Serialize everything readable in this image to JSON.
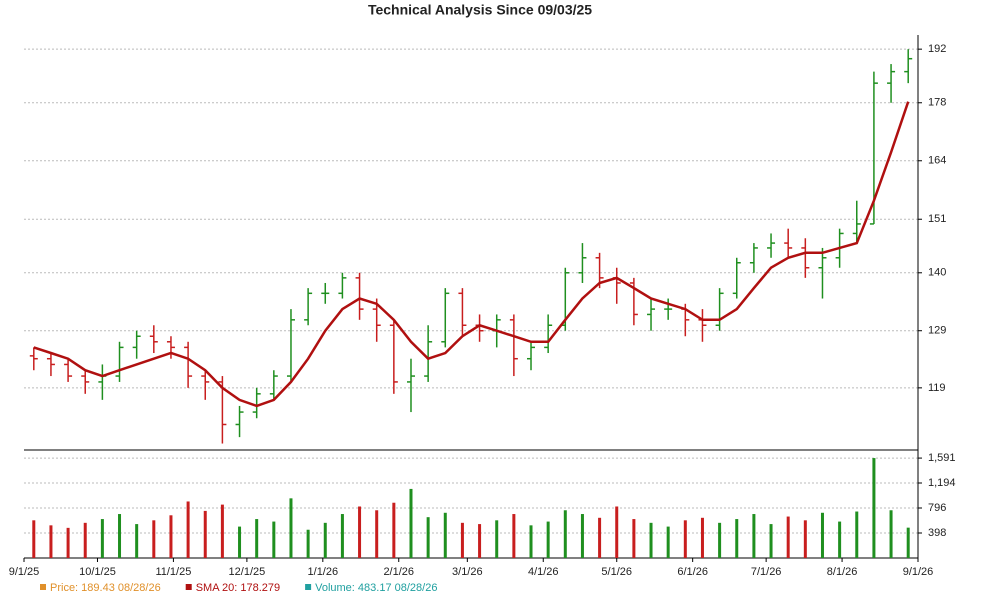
{
  "chart_data": [
    {
      "type": "ohlc",
      "title": "Technical Analysis Since 09/03/25",
      "x": [
        "2025-09-05",
        "2025-09-12",
        "2025-09-19",
        "2025-09-26",
        "2025-10-03",
        "2025-10-10",
        "2025-10-17",
        "2025-10-24",
        "2025-10-31",
        "2025-11-07",
        "2025-11-14",
        "2025-11-21",
        "2025-11-28",
        "2025-12-05",
        "2025-12-12",
        "2025-12-19",
        "2025-12-26",
        "2026-01-02",
        "2026-01-09",
        "2026-01-16",
        "2026-01-23",
        "2026-01-30",
        "2026-02-06",
        "2026-02-13",
        "2026-02-20",
        "2026-02-27",
        "2026-03-06",
        "2026-03-13",
        "2026-03-20",
        "2026-03-27",
        "2026-04-03",
        "2026-04-10",
        "2026-04-17",
        "2026-04-24",
        "2026-05-01",
        "2026-05-08",
        "2026-05-15",
        "2026-05-22",
        "2026-05-29",
        "2026-06-05",
        "2026-06-12",
        "2026-06-19",
        "2026-06-26",
        "2026-07-03",
        "2026-07-10",
        "2026-07-17",
        "2026-07-24",
        "2026-07-31",
        "2026-08-07",
        "2026-08-14",
        "2026-08-21",
        "2026-08-28"
      ],
      "open": [
        124.5,
        124,
        123,
        121,
        120,
        121,
        126,
        128,
        127,
        126,
        121,
        120,
        113,
        115,
        118,
        121,
        131,
        136,
        136,
        139,
        133,
        130,
        120,
        121,
        127,
        136,
        130,
        129,
        131,
        124,
        126,
        130,
        140,
        143,
        139,
        138,
        132,
        133,
        133,
        131,
        130,
        136,
        142,
        145,
        146,
        145,
        141,
        143,
        148,
        150,
        183,
        186
      ],
      "high": [
        126,
        125,
        124,
        122,
        123,
        127,
        129,
        130,
        128,
        127,
        122,
        121,
        116,
        119,
        122,
        133,
        137,
        138,
        140,
        140,
        135,
        131,
        124,
        130,
        137,
        137,
        132,
        132,
        132,
        127,
        132,
        141,
        146,
        144,
        141,
        139,
        135,
        135,
        134,
        133,
        137,
        143,
        146,
        148,
        149,
        147,
        145,
        149,
        155,
        186,
        188,
        192
      ],
      "low": [
        122,
        121,
        120,
        118,
        117,
        120,
        124,
        125,
        124,
        119,
        117,
        110,
        111,
        114,
        117,
        120,
        130,
        134,
        135,
        131,
        127,
        118,
        115,
        120,
        126,
        128,
        127,
        126,
        121,
        122,
        125,
        129,
        138,
        137,
        134,
        130,
        129,
        131,
        128,
        127,
        129,
        135,
        140,
        143,
        143,
        139,
        135,
        141,
        146,
        150,
        178,
        183
      ],
      "close": [
        124,
        123,
        121,
        120,
        121,
        126,
        128,
        127,
        126,
        121,
        120,
        113,
        115,
        118,
        121,
        131,
        136,
        136,
        139,
        133,
        130,
        120,
        121,
        127,
        136,
        130,
        129,
        131,
        124,
        126,
        130,
        140,
        143,
        139,
        138,
        132,
        133,
        133,
        131,
        130,
        136,
        142,
        145,
        146,
        145,
        141,
        143,
        148,
        150,
        183,
        186,
        189.43
      ],
      "up_color": "#1f8f1f",
      "down_color": "#c81e1e",
      "series": [
        {
          "name": "SMA 20",
          "color": "#b01010",
          "values": [
            126,
            125,
            124,
            122,
            121,
            122,
            123,
            124,
            125,
            124,
            122,
            119,
            117,
            116,
            117,
            120,
            124,
            129,
            133,
            135,
            134,
            131,
            127,
            124,
            125,
            128,
            130,
            129,
            128,
            127,
            127,
            131,
            135,
            138,
            139,
            137,
            135,
            134,
            133,
            131,
            131,
            133,
            137,
            141,
            143,
            144,
            144,
            145,
            146,
            155,
            166,
            178.279
          ]
        }
      ],
      "xlim": [
        "2025-09-01",
        "2026-09-01"
      ],
      "ylim": [
        109,
        194.5
      ],
      "log_scale": true,
      "grid": true,
      "yticks": [
        119,
        129,
        140,
        151,
        164,
        178,
        192
      ]
    },
    {
      "type": "bar",
      "values": [
        600,
        520,
        480,
        560,
        620,
        700,
        540,
        600,
        680,
        900,
        750,
        850,
        500,
        620,
        580,
        950,
        450,
        560,
        700,
        820,
        760,
        880,
        1100,
        650,
        720,
        560,
        540,
        600,
        700,
        520,
        580,
        760,
        700,
        640,
        820,
        620,
        560,
        500,
        600,
        640,
        560,
        620,
        700,
        540,
        660,
        600,
        720,
        580,
        740,
        1591,
        760,
        483.17
      ],
      "ylim": [
        0,
        1640
      ],
      "grid": true,
      "yticks": [
        398,
        796,
        {
          "value": 1194,
          "label": "1,194"
        },
        {
          "value": 1591,
          "label": "1,591"
        }
      ],
      "xticks": [
        {
          "value": "2025-09-01",
          "label": "9/1/25"
        },
        {
          "value": "2025-10-01",
          "label": "10/1/25"
        },
        {
          "value": "2025-11-01",
          "label": "11/1/25"
        },
        {
          "value": "2025-12-01",
          "label": "12/1/25"
        },
        {
          "value": "2026-01-01",
          "label": "1/1/26"
        },
        {
          "value": "2026-02-01",
          "label": "2/1/26"
        },
        {
          "value": "2026-03-01",
          "label": "3/1/26"
        },
        {
          "value": "2026-04-01",
          "label": "4/1/26"
        },
        {
          "value": "2026-05-01",
          "label": "5/1/26"
        },
        {
          "value": "2026-06-01",
          "label": "6/1/26"
        },
        {
          "value": "2026-07-01",
          "label": "7/1/26"
        },
        {
          "value": "2026-08-01",
          "label": "8/1/26"
        },
        {
          "value": "2026-09-01",
          "label": "9/1/26"
        }
      ],
      "legend": [
        {
          "label": "Price: 189.43  08/28/26",
          "color": "#e0902a"
        },
        {
          "label": "SMA 20: 178.279",
          "color": "#b01010"
        },
        {
          "label": "Volume: 483.17  08/28/26",
          "color": "#20a0a0"
        }
      ]
    }
  ]
}
